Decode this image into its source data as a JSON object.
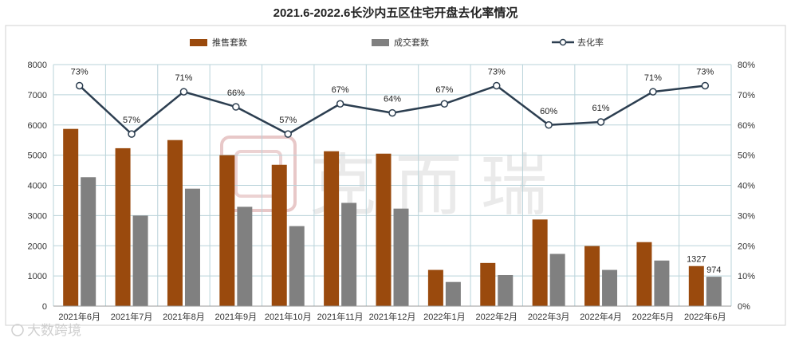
{
  "title": "2021.6-2022.6长沙内五区住宅开盘去化率情况",
  "watermark": {
    "logo_text": "克而瑞",
    "badge_text": "大数跨境"
  },
  "colors": {
    "supply": "#9a4a0d",
    "deal": "#808080",
    "rate": "#2c3e50",
    "grid": "#b9d3da"
  },
  "chart_data": {
    "type": "bar",
    "title": "2021.6-2022.6长沙内五区住宅开盘去化率情况",
    "categories": [
      "2021年6月",
      "2021年7月",
      "2021年8月",
      "2021年9月",
      "2021年10月",
      "2021年11月",
      "2021年12月",
      "2022年1月",
      "2022年2月",
      "2022年3月",
      "2022年4月",
      "2022年5月",
      "2022年6月"
    ],
    "series": [
      {
        "name": "推售套数",
        "type": "bar",
        "axis": "left",
        "values": [
          5870,
          5230,
          5500,
          5000,
          4680,
          5130,
          5050,
          1200,
          1430,
          2870,
          1990,
          2120,
          1327
        ]
      },
      {
        "name": "成交套数",
        "type": "bar",
        "axis": "left",
        "values": [
          4270,
          3000,
          3890,
          3290,
          2650,
          3420,
          3230,
          800,
          1030,
          1730,
          1200,
          1510,
          974
        ]
      },
      {
        "name": "去化率",
        "type": "line",
        "axis": "right",
        "values": [
          73,
          57,
          71,
          66,
          57,
          67,
          64,
          67,
          73,
          60,
          61,
          71,
          73
        ],
        "labels": [
          "73%",
          "57%",
          "71%",
          "66%",
          "57%",
          "67%",
          "64%",
          "67%",
          "73%",
          "60%",
          "61%",
          "71%",
          "73%"
        ]
      }
    ],
    "bar_labels": [
      {
        "series": 0,
        "index": 12,
        "text": "1327"
      },
      {
        "series": 1,
        "index": 12,
        "text": "974"
      }
    ],
    "yticks_left": [
      "0",
      "1000",
      "2000",
      "3000",
      "4000",
      "5000",
      "6000",
      "7000",
      "8000"
    ],
    "yticks_right": [
      "0%",
      "10%",
      "20%",
      "30%",
      "40%",
      "50%",
      "60%",
      "70%",
      "80%"
    ],
    "ylim_left": [
      0,
      8000
    ],
    "ylim_right": [
      0,
      80
    ],
    "grid": true,
    "legend_position": "top-center"
  }
}
